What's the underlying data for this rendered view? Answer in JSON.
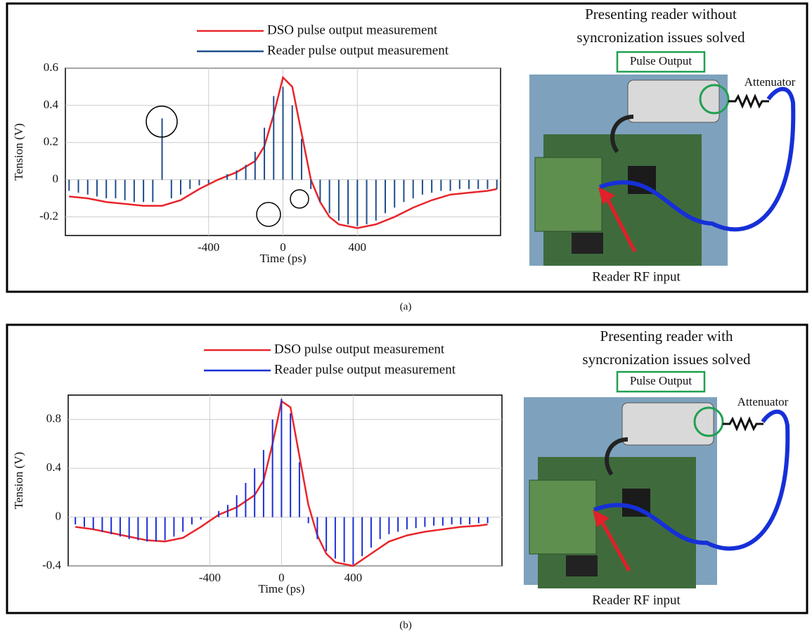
{
  "chart_data": [
    {
      "type": "line",
      "caption": "(a)",
      "title_lines": [
        "Presenting reader without",
        "syncronization issues solved"
      ],
      "annotations": [
        "Pulse Output",
        "Attenuator",
        "Reader RF input"
      ],
      "x_label": "Time (ps)",
      "y_label": "Tension (V)",
      "xlim": [
        -1170,
        1170
      ],
      "ylim": [
        -0.3,
        0.6
      ],
      "xticks": [
        -400,
        0,
        400
      ],
      "yticks": [
        {
          "value": -0.2,
          "label": "-0.2"
        },
        0,
        0.2,
        0.4,
        0.6
      ],
      "grid": true,
      "series": [
        {
          "name": "DSO pulse output measurement",
          "color": "#e8262b",
          "style": "line",
          "x": [
            -1150,
            -1050,
            -950,
            -850,
            -750,
            -650,
            -550,
            -450,
            -350,
            -250,
            -150,
            -100,
            -50,
            0,
            50,
            100,
            150,
            200,
            250,
            300,
            400,
            500,
            600,
            700,
            800,
            900,
            1000,
            1100,
            1150
          ],
          "values": [
            -0.09,
            -0.1,
            -0.12,
            -0.13,
            -0.14,
            -0.14,
            -0.11,
            -0.05,
            0.0,
            0.04,
            0.1,
            0.18,
            0.35,
            0.55,
            0.5,
            0.25,
            0.0,
            -0.12,
            -0.2,
            -0.24,
            -0.26,
            -0.24,
            -0.2,
            -0.15,
            -0.11,
            -0.08,
            -0.07,
            -0.06,
            -0.05
          ]
        },
        {
          "name": "Reader pulse output measurement",
          "color": "#1f4e8c",
          "style": "stem",
          "x": [
            -1150,
            -1100,
            -1050,
            -1000,
            -950,
            -900,
            -850,
            -800,
            -750,
            -700,
            -650,
            -600,
            -550,
            -500,
            -450,
            -400,
            -350,
            -300,
            -250,
            -200,
            -150,
            -100,
            -50,
            0,
            50,
            100,
            150,
            200,
            250,
            300,
            350,
            400,
            450,
            500,
            550,
            600,
            650,
            700,
            750,
            800,
            850,
            900,
            950,
            1000,
            1050,
            1100,
            1150
          ],
          "values": [
            -0.06,
            -0.07,
            -0.08,
            -0.09,
            -0.1,
            -0.1,
            -0.11,
            -0.12,
            -0.12,
            -0.12,
            0.33,
            -0.1,
            -0.08,
            -0.05,
            -0.03,
            -0.02,
            0.0,
            0.03,
            0.05,
            0.08,
            0.15,
            0.28,
            0.45,
            0.5,
            0.4,
            0.22,
            -0.05,
            -0.12,
            -0.18,
            -0.22,
            -0.24,
            -0.25,
            -0.24,
            -0.22,
            -0.18,
            -0.15,
            -0.12,
            -0.1,
            -0.08,
            -0.07,
            -0.06,
            -0.06,
            -0.05,
            -0.05,
            -0.05,
            -0.05,
            -0.05
          ]
        }
      ]
    },
    {
      "type": "line",
      "caption": "(b)",
      "title_lines": [
        "Presenting reader with",
        "syncronization issues solved"
      ],
      "annotations": [
        "Pulse Output",
        "Attenuator",
        "Reader RF input"
      ],
      "x_label": "Time (ps)",
      "y_label": "Tension (V)",
      "xlim": [
        -1190,
        1230
      ],
      "ylim": [
        -0.4,
        1.0
      ],
      "xticks": [
        -400,
        0,
        400
      ],
      "yticks": [
        {
          "value": -0.4,
          "label": "-0.4"
        },
        0,
        0.4,
        0.8
      ],
      "grid": true,
      "series": [
        {
          "name": "DSO pulse output measurement",
          "color": "#e8262b",
          "style": "line",
          "x": [
            -1150,
            -1050,
            -950,
            -850,
            -750,
            -650,
            -550,
            -450,
            -350,
            -250,
            -150,
            -100,
            -50,
            0,
            50,
            100,
            150,
            200,
            250,
            300,
            400,
            500,
            600,
            700,
            800,
            900,
            1000,
            1100,
            1150
          ],
          "values": [
            -0.08,
            -0.1,
            -0.13,
            -0.16,
            -0.19,
            -0.2,
            -0.17,
            -0.08,
            0.02,
            0.08,
            0.18,
            0.3,
            0.6,
            0.95,
            0.9,
            0.5,
            0.1,
            -0.15,
            -0.3,
            -0.37,
            -0.4,
            -0.3,
            -0.2,
            -0.15,
            -0.12,
            -0.1,
            -0.08,
            -0.07,
            -0.06
          ]
        },
        {
          "name": "Reader pulse output measurement",
          "color": "#1a2fd6",
          "style": "stem",
          "x": [
            -1150,
            -1100,
            -1050,
            -1000,
            -950,
            -900,
            -850,
            -800,
            -750,
            -700,
            -650,
            -600,
            -550,
            -500,
            -450,
            -400,
            -350,
            -300,
            -250,
            -200,
            -150,
            -100,
            -50,
            0,
            50,
            100,
            150,
            200,
            250,
            300,
            350,
            400,
            450,
            500,
            550,
            600,
            650,
            700,
            750,
            800,
            850,
            900,
            950,
            1000,
            1050,
            1100,
            1150
          ],
          "values": [
            -0.06,
            -0.08,
            -0.1,
            -0.12,
            -0.14,
            -0.16,
            -0.18,
            -0.19,
            -0.2,
            -0.2,
            -0.19,
            -0.16,
            -0.12,
            -0.06,
            -0.02,
            0.0,
            0.05,
            0.1,
            0.18,
            0.28,
            0.4,
            0.55,
            0.8,
            0.97,
            0.85,
            0.45,
            -0.05,
            -0.18,
            -0.28,
            -0.34,
            -0.37,
            -0.39,
            -0.32,
            -0.25,
            -0.18,
            -0.14,
            -0.12,
            -0.1,
            -0.09,
            -0.08,
            -0.07,
            -0.07,
            -0.06,
            -0.06,
            -0.06,
            -0.05,
            -0.05
          ]
        }
      ]
    }
  ]
}
